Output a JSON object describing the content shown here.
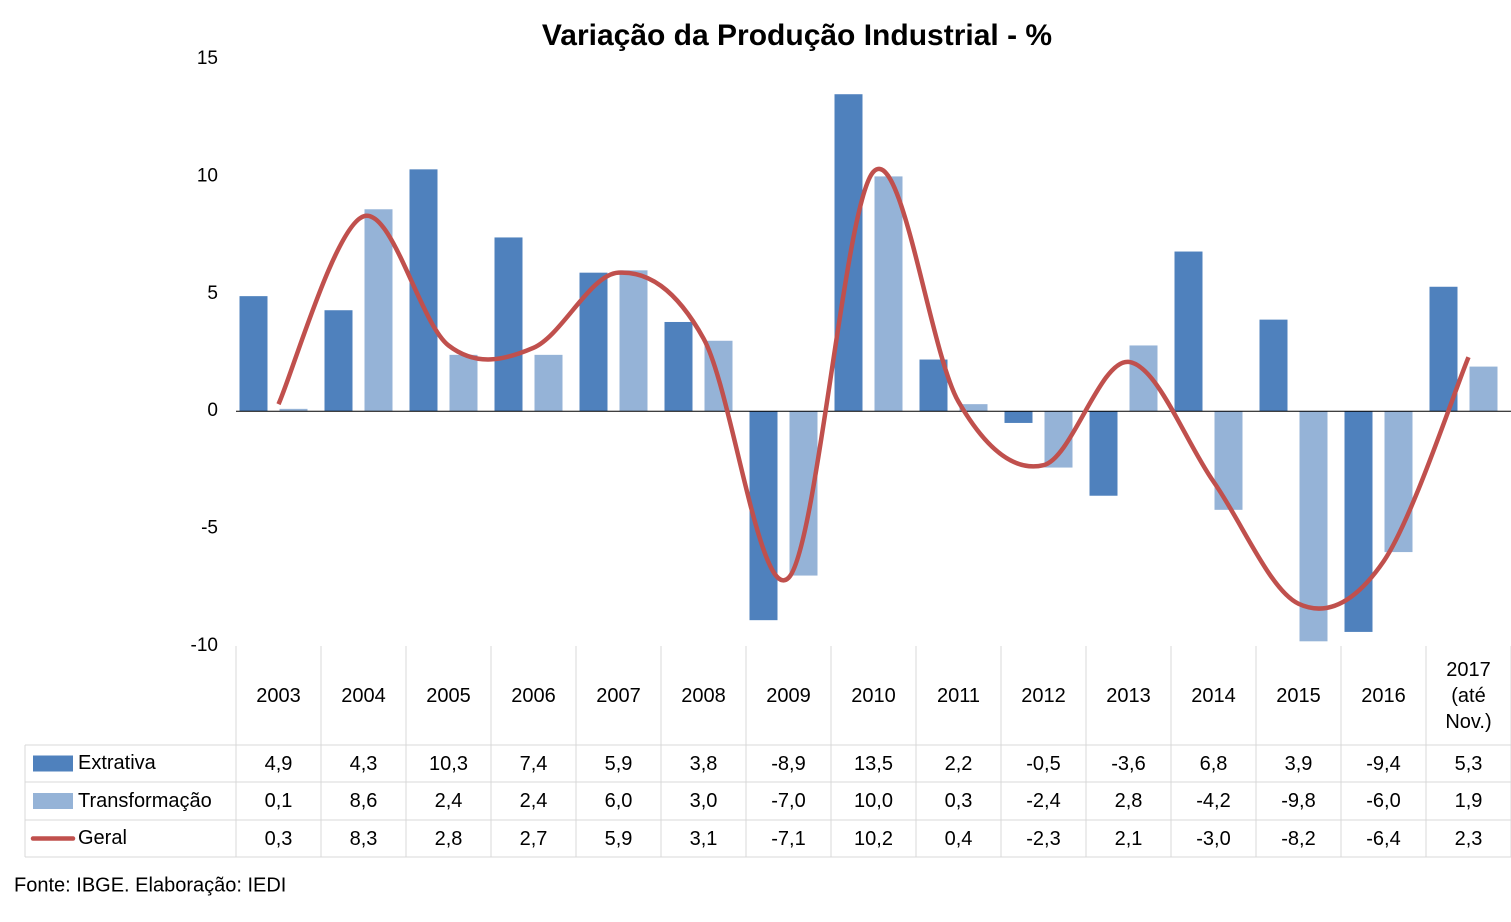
{
  "chart_data": {
    "type": "bar",
    "title": "Variação da Produção Industrial - %",
    "categories": [
      "2003",
      "2004",
      "2005",
      "2006",
      "2007",
      "2008",
      "2009",
      "2010",
      "2011",
      "2012",
      "2013",
      "2014",
      "2015",
      "2016",
      "2017 (até Nov.)"
    ],
    "series": [
      {
        "name": "Extrativa",
        "type": "bar",
        "color": "#4f81bd",
        "values": [
          4.9,
          4.3,
          10.3,
          7.4,
          5.9,
          3.8,
          -8.9,
          13.5,
          2.2,
          -0.5,
          -3.6,
          6.8,
          3.9,
          -9.4,
          5.3
        ],
        "value_labels": [
          "4,9",
          "4,3",
          "10,3",
          "7,4",
          "5,9",
          "3,8",
          "-8,9",
          "13,5",
          "2,2",
          "-0,5",
          "-3,6",
          "6,8",
          "3,9",
          "-9,4",
          "5,3"
        ]
      },
      {
        "name": "Transformação",
        "type": "bar",
        "color": "#95b3d7",
        "values": [
          0.1,
          8.6,
          2.4,
          2.4,
          6.0,
          3.0,
          -7.0,
          10.0,
          0.3,
          -2.4,
          2.8,
          -4.2,
          -9.8,
          -6.0,
          1.9
        ],
        "value_labels": [
          "0,1",
          "8,6",
          "2,4",
          "2,4",
          "6,0",
          "3,0",
          "-7,0",
          "10,0",
          "0,3",
          "-2,4",
          "2,8",
          "-4,2",
          "-9,8",
          "-6,0",
          "1,9"
        ]
      },
      {
        "name": "Geral",
        "type": "line",
        "color": "#c0504d",
        "values": [
          0.3,
          8.3,
          2.8,
          2.7,
          5.9,
          3.1,
          -7.1,
          10.2,
          0.4,
          -2.3,
          2.1,
          -3.0,
          -8.2,
          -6.4,
          2.3
        ],
        "value_labels": [
          "0,3",
          "8,3",
          "2,8",
          "2,7",
          "5,9",
          "3,1",
          "-7,1",
          "10,2",
          "0,4",
          "-2,3",
          "2,1",
          "-3,0",
          "-8,2",
          "-6,4",
          "2,3"
        ]
      }
    ],
    "ylim": [
      -10,
      15
    ],
    "yticks": [
      -10,
      -5,
      0,
      5,
      10,
      15
    ],
    "source": "Fonte: IBGE. Elaboração: IEDI"
  }
}
